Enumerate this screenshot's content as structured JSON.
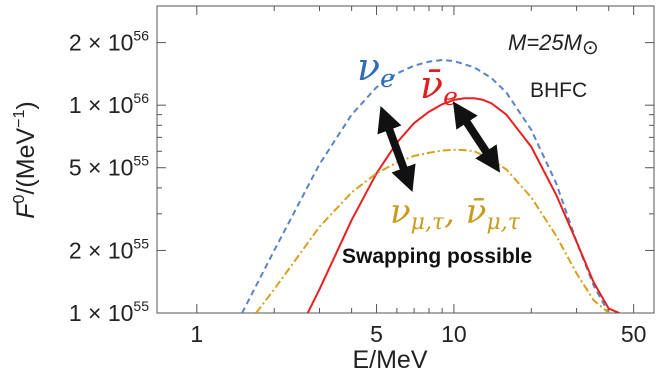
{
  "chart_data": {
    "type": "line",
    "x_scale": "log",
    "y_scale": "log",
    "xlim": [
      0.7,
      60
    ],
    "ylim": [
      1e+55,
      3e+56
    ],
    "xlabel": "E/MeV",
    "ylabel_main": "F",
    "ylabel_sup": "0",
    "ylabel_unit": "/(MeV",
    "ylabel_unit_sup": "−1",
    "ylabel_close": ")",
    "x_ticks": [
      {
        "value": 1,
        "label": "1"
      },
      {
        "value": 5,
        "label": "5"
      },
      {
        "value": 10,
        "label": "10"
      },
      {
        "value": 50,
        "label": "50"
      }
    ],
    "y_ticks": [
      {
        "value": 1e+55,
        "mant": "1 × 10",
        "exp": "55"
      },
      {
        "value": 2e+55,
        "mant": "2 × 10",
        "exp": "55"
      },
      {
        "value": 5e+55,
        "mant": "5 × 10",
        "exp": "55"
      },
      {
        "value": 1e+56,
        "mant": "1 × 10",
        "exp": "56"
      },
      {
        "value": 2e+56,
        "mant": "2 × 10",
        "exp": "56"
      }
    ],
    "series": [
      {
        "key": "nue",
        "color": "#5b84c4",
        "dash": "6,4",
        "x": [
          1.5,
          2,
          3,
          4,
          5,
          6,
          7,
          8,
          9,
          10,
          12,
          14,
          16,
          20,
          25,
          30,
          35,
          40
        ],
        "y": [
          1e+55,
          2e+55,
          5.2e+55,
          9e+55,
          1.22e+56,
          1.42e+56,
          1.55e+56,
          1.62e+56,
          1.65e+56,
          1.63e+56,
          1.52e+56,
          1.35e+56,
          1.15e+56,
          7.6e+55,
          4.2e+55,
          2.2e+55,
          1.35e+55,
          1e+55
        ]
      },
      {
        "key": "nuebar",
        "color": "#e8201f",
        "dash": "",
        "x": [
          2.7,
          3,
          4,
          5,
          6,
          7,
          8,
          9,
          10,
          11,
          12,
          13,
          14,
          16,
          20,
          25,
          30,
          35,
          40,
          44
        ],
        "y": [
          1e+55,
          1.3e+55,
          2.8e+55,
          4.7e+55,
          6.6e+55,
          8.2e+55,
          9.3e+55,
          1.01e+56,
          1.06e+56,
          1.08e+56,
          1.08e+56,
          1.06e+56,
          1.02e+56,
          9e+55,
          6.3e+55,
          3.7e+55,
          2.2e+55,
          1.4e+55,
          1.05e+55,
          1e+55
        ]
      },
      {
        "key": "nux",
        "color": "#d6a11f",
        "dash": "8,3,2,3",
        "x": [
          1.7,
          2,
          3,
          4,
          5,
          6,
          7,
          8,
          9,
          10,
          11,
          12,
          14,
          16,
          20,
          25,
          30,
          35,
          40
        ],
        "y": [
          1e+55,
          1.3e+55,
          2.6e+55,
          3.8e+55,
          4.7e+55,
          5.3e+55,
          5.7e+55,
          5.9e+55,
          6.05e+55,
          6.1e+55,
          6.08e+55,
          6e+55,
          5.5e+55,
          4.9e+55,
          3.6e+55,
          2.35e+55,
          1.55e+55,
          1.15e+55,
          1e+55
        ]
      }
    ],
    "annotations": {
      "mass_text_main": "M=25M",
      "mass_sun": "⊙",
      "model": "BHFC",
      "nue_label": "ν",
      "nue_sub": "e",
      "nuebar_label": "ν̄",
      "nuebar_sub": "e",
      "nux_label_1": "ν",
      "nux_sub_1": "μ,τ",
      "nux_sep": ", ",
      "nux_label_2": "ν̄",
      "nux_sub_2": "μ,τ",
      "swap_text": "Swapping possible"
    },
    "grid": false,
    "legend": "none"
  }
}
